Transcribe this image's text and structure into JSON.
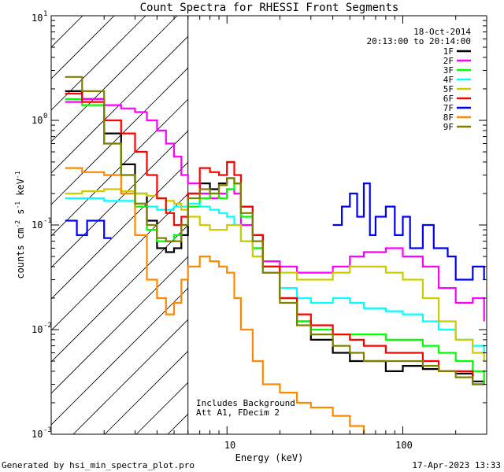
{
  "chart_data": {
    "type": "line",
    "title": "Count Spectra for RHESSI Front Segments",
    "xlabel": "Energy (keV)",
    "ylabel": "counts cm",
    "ylabel_sup1": "-2",
    "ylabel_mid": " s",
    "ylabel_sup2": "-1",
    "ylabel_end": " keV",
    "ylabel_sup3": "-1",
    "x_scale": "log",
    "y_scale": "log",
    "xlim": [
      1,
      300
    ],
    "ylim": [
      0.001,
      10
    ],
    "x_ticks": [
      {
        "value": 10,
        "label": "10"
      },
      {
        "value": 100,
        "label": "100"
      }
    ],
    "y_ticks": [
      {
        "value": 0.001,
        "base": "10",
        "exp": "-3"
      },
      {
        "value": 0.01,
        "base": "10",
        "exp": "-2"
      },
      {
        "value": 0.1,
        "base": "10",
        "exp": "-1"
      },
      {
        "value": 1,
        "base": "10",
        "exp": "0"
      },
      {
        "value": 10,
        "base": "10",
        "exp": "1"
      }
    ],
    "date": "18-Oct-2014",
    "time_range": "20:13:00 to 20:14:00",
    "shaded_region_upper_kev": 6,
    "annotation_line1": "Includes Background",
    "annotation_line2": "Att A1, FDecim 2",
    "series": [
      {
        "name": "1F",
        "color": "#000000",
        "x": [
          1.2,
          1.5,
          2,
          2.5,
          3,
          3.5,
          4,
          4.5,
          5,
          5.5,
          6,
          7,
          8,
          9,
          10,
          11,
          12,
          14,
          16,
          20,
          25,
          30,
          40,
          50,
          60,
          80,
          100,
          130,
          160,
          200,
          250,
          290
        ],
        "y": [
          1.9,
          1.6,
          0.75,
          0.38,
          0.2,
          0.11,
          0.06,
          0.055,
          0.06,
          0.08,
          0.2,
          0.25,
          0.22,
          0.25,
          0.28,
          0.25,
          0.15,
          0.08,
          0.04,
          0.02,
          0.012,
          0.008,
          0.006,
          0.005,
          0.005,
          0.004,
          0.0045,
          0.0042,
          0.004,
          0.0038,
          0.0032,
          0.003
        ]
      },
      {
        "name": "2F",
        "color": "#ff00ff",
        "x": [
          1.2,
          1.5,
          2,
          2.5,
          3,
          3.5,
          4,
          4.5,
          5,
          5.5,
          6,
          7,
          8,
          9,
          10,
          11,
          12,
          14,
          16,
          20,
          25,
          30,
          40,
          50,
          60,
          80,
          100,
          130,
          160,
          200,
          250,
          290
        ],
        "y": [
          1.5,
          1.6,
          1.4,
          1.3,
          1.2,
          1.0,
          0.8,
          0.6,
          0.45,
          0.3,
          0.25,
          0.2,
          0.18,
          0.2,
          0.22,
          0.2,
          0.1,
          0.06,
          0.045,
          0.04,
          0.035,
          0.035,
          0.04,
          0.05,
          0.055,
          0.06,
          0.05,
          0.04,
          0.025,
          0.018,
          0.02,
          0.012
        ]
      },
      {
        "name": "3F",
        "color": "#00ff00",
        "x": [
          1.2,
          1.5,
          2,
          2.5,
          3,
          3.5,
          4,
          4.5,
          5,
          5.5,
          6,
          7,
          8,
          9,
          10,
          11,
          12,
          14,
          16,
          20,
          25,
          30,
          40,
          50,
          60,
          80,
          100,
          130,
          160,
          200,
          250,
          290
        ],
        "y": [
          1.6,
          1.4,
          0.6,
          0.3,
          0.15,
          0.09,
          0.07,
          0.07,
          0.08,
          0.1,
          0.15,
          0.18,
          0.2,
          0.18,
          0.22,
          0.25,
          0.12,
          0.06,
          0.035,
          0.02,
          0.012,
          0.01,
          0.009,
          0.009,
          0.009,
          0.008,
          0.008,
          0.007,
          0.006,
          0.005,
          0.004,
          0.003
        ]
      },
      {
        "name": "4F",
        "color": "#00ffff",
        "x": [
          1.2,
          1.5,
          2,
          2.5,
          3,
          3.5,
          4,
          4.5,
          5,
          5.5,
          6,
          7,
          8,
          9,
          10,
          11,
          12,
          14,
          16,
          20,
          25,
          30,
          40,
          50,
          60,
          80,
          100,
          130,
          160,
          200,
          250,
          290
        ],
        "y": [
          0.18,
          0.18,
          0.17,
          0.17,
          0.16,
          0.15,
          0.14,
          0.14,
          0.15,
          0.15,
          0.16,
          0.15,
          0.14,
          0.13,
          0.12,
          0.1,
          0.07,
          0.05,
          0.035,
          0.025,
          0.02,
          0.018,
          0.02,
          0.018,
          0.016,
          0.015,
          0.014,
          0.012,
          0.01,
          0.008,
          0.007,
          0.006
        ]
      },
      {
        "name": "5F",
        "color": "#cccc00",
        "x": [
          1.2,
          1.5,
          2,
          2.5,
          3,
          3.5,
          4,
          4.5,
          5,
          5.5,
          6,
          7,
          8,
          9,
          10,
          11,
          12,
          14,
          16,
          20,
          25,
          30,
          40,
          50,
          60,
          80,
          100,
          130,
          160,
          200,
          250,
          290
        ],
        "y": [
          0.2,
          0.21,
          0.22,
          0.21,
          0.2,
          0.19,
          0.18,
          0.17,
          0.16,
          0.14,
          0.12,
          0.1,
          0.09,
          0.09,
          0.1,
          0.1,
          0.07,
          0.05,
          0.04,
          0.035,
          0.03,
          0.03,
          0.035,
          0.04,
          0.04,
          0.035,
          0.03,
          0.02,
          0.012,
          0.008,
          0.006,
          0.005
        ]
      },
      {
        "name": "6F",
        "color": "#ff0000",
        "x": [
          1.2,
          1.5,
          2,
          2.5,
          3,
          3.5,
          4,
          4.5,
          5,
          5.5,
          6,
          7,
          8,
          9,
          10,
          11,
          12,
          14,
          16,
          20,
          25,
          30,
          40,
          50,
          60,
          80,
          100,
          130,
          160,
          200,
          250,
          290
        ],
        "y": [
          1.8,
          1.5,
          1.0,
          0.75,
          0.5,
          0.3,
          0.18,
          0.13,
          0.1,
          0.12,
          0.2,
          0.35,
          0.32,
          0.3,
          0.4,
          0.3,
          0.15,
          0.08,
          0.04,
          0.02,
          0.014,
          0.011,
          0.009,
          0.008,
          0.007,
          0.006,
          0.006,
          0.005,
          0.004,
          0.004,
          0.003,
          0.003
        ]
      },
      {
        "name": "7F",
        "color": "#0000ff",
        "x": [
          1.2,
          1.3,
          1.4,
          1.5,
          1.6,
          1.8,
          2.0,
          2.2
        ],
        "y": [
          0.11,
          0.11,
          0.08,
          0.08,
          0.11,
          0.11,
          0.075,
          0.075
        ],
        "x2": [
          40,
          45,
          50,
          55,
          60,
          65,
          70,
          80,
          90,
          100,
          110,
          130,
          150,
          180,
          200,
          250,
          290
        ],
        "y2": [
          0.1,
          0.15,
          0.2,
          0.12,
          0.25,
          0.08,
          0.12,
          0.15,
          0.08,
          0.12,
          0.06,
          0.1,
          0.06,
          0.05,
          0.03,
          0.04,
          0.03
        ]
      },
      {
        "name": "8F",
        "color": "#ff8800",
        "x": [
          1.2,
          1.5,
          2,
          2.5,
          3,
          3.5,
          4,
          4.5,
          5,
          5.5,
          6,
          7,
          8,
          9,
          10,
          11,
          12,
          14,
          16,
          20,
          25,
          30,
          40,
          50,
          60
        ],
        "y": [
          0.35,
          0.32,
          0.3,
          0.2,
          0.08,
          0.03,
          0.02,
          0.014,
          0.018,
          0.03,
          0.04,
          0.05,
          0.045,
          0.04,
          0.035,
          0.02,
          0.01,
          0.005,
          0.003,
          0.0025,
          0.002,
          0.0018,
          0.0015,
          0.0012,
          0.001
        ]
      },
      {
        "name": "9F",
        "color": "#808000",
        "x": [
          1.2,
          1.5,
          2,
          2.5,
          3,
          3.5,
          4,
          4.5,
          5,
          5.5,
          6,
          7,
          8,
          9,
          10,
          11,
          12,
          14,
          16,
          20,
          25,
          30,
          40,
          50,
          60,
          80,
          100,
          130,
          160,
          200,
          250,
          290
        ],
        "y": [
          2.6,
          1.9,
          0.6,
          0.3,
          0.16,
          0.1,
          0.075,
          0.07,
          0.07,
          0.1,
          0.18,
          0.22,
          0.2,
          0.24,
          0.28,
          0.25,
          0.13,
          0.07,
          0.035,
          0.018,
          0.011,
          0.009,
          0.007,
          0.006,
          0.005,
          0.005,
          0.005,
          0.0045,
          0.004,
          0.0035,
          0.003,
          0.003
        ]
      }
    ]
  },
  "footer": {
    "generated_by": "Generated by hsi_min_spectra_plot.pro",
    "timestamp": "17-Apr-2023 13:33"
  }
}
